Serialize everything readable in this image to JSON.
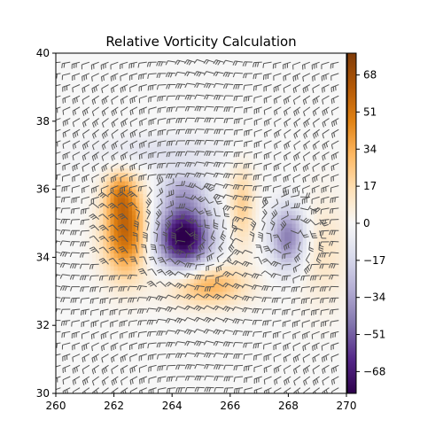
{
  "chart_data": {
    "type": "heatmap",
    "title": "Relative Vorticity Calculation",
    "xlabel": "",
    "ylabel": "",
    "xlim": [
      260,
      270
    ],
    "ylim": [
      30,
      40
    ],
    "x_ticks": [
      "260",
      "262",
      "264",
      "266",
      "268",
      "270"
    ],
    "y_ticks": [
      "30",
      "32",
      "34",
      "36",
      "38",
      "40"
    ],
    "colorbar": {
      "colormap": "PuOr_r",
      "range": [
        -78,
        78
      ],
      "ticks": [
        "68",
        "51",
        "34",
        "17",
        "0",
        "−17",
        "−34",
        "−51",
        "−68"
      ],
      "tick_values": [
        68,
        51,
        34,
        17,
        0,
        -17,
        -34,
        -51,
        -68
      ]
    },
    "field_features": [
      {
        "kind": "positive",
        "center": [
          262.4,
          34.8
        ],
        "radius": [
          0.75,
          1.3
        ],
        "value": 58
      },
      {
        "kind": "positive",
        "center": [
          262.2,
          35.9
        ],
        "radius": [
          0.5,
          0.6
        ],
        "value": 25
      },
      {
        "kind": "negative",
        "center": [
          264.4,
          34.6
        ],
        "radius": [
          0.95,
          0.95
        ],
        "value": -82
      },
      {
        "kind": "negative",
        "center": [
          264.4,
          36.0
        ],
        "radius": [
          0.8,
          0.6
        ],
        "value": -25
      },
      {
        "kind": "positive",
        "center": [
          265.2,
          33.2
        ],
        "radius": [
          1.3,
          0.6
        ],
        "value": 35
      },
      {
        "kind": "positive",
        "center": [
          266.4,
          35.5
        ],
        "radius": [
          0.45,
          1.2
        ],
        "value": 22
      },
      {
        "kind": "negative",
        "center": [
          268.0,
          34.6
        ],
        "radius": [
          0.6,
          0.9
        ],
        "value": -45
      },
      {
        "kind": "positive",
        "center": [
          269.2,
          34.2
        ],
        "radius": [
          0.9,
          1.6
        ],
        "value": 12
      },
      {
        "kind": "negative",
        "center": [
          263.5,
          37.1
        ],
        "radius": [
          2.2,
          0.5
        ],
        "value": -12
      }
    ],
    "wind_barbs": {
      "x_spacing": 0.33,
      "y_spacing": 0.33,
      "color": "#555555"
    },
    "colors": {
      "positive": "#7f3b08",
      "zero": "#f7f7f7",
      "negative": "#2d004b"
    }
  }
}
